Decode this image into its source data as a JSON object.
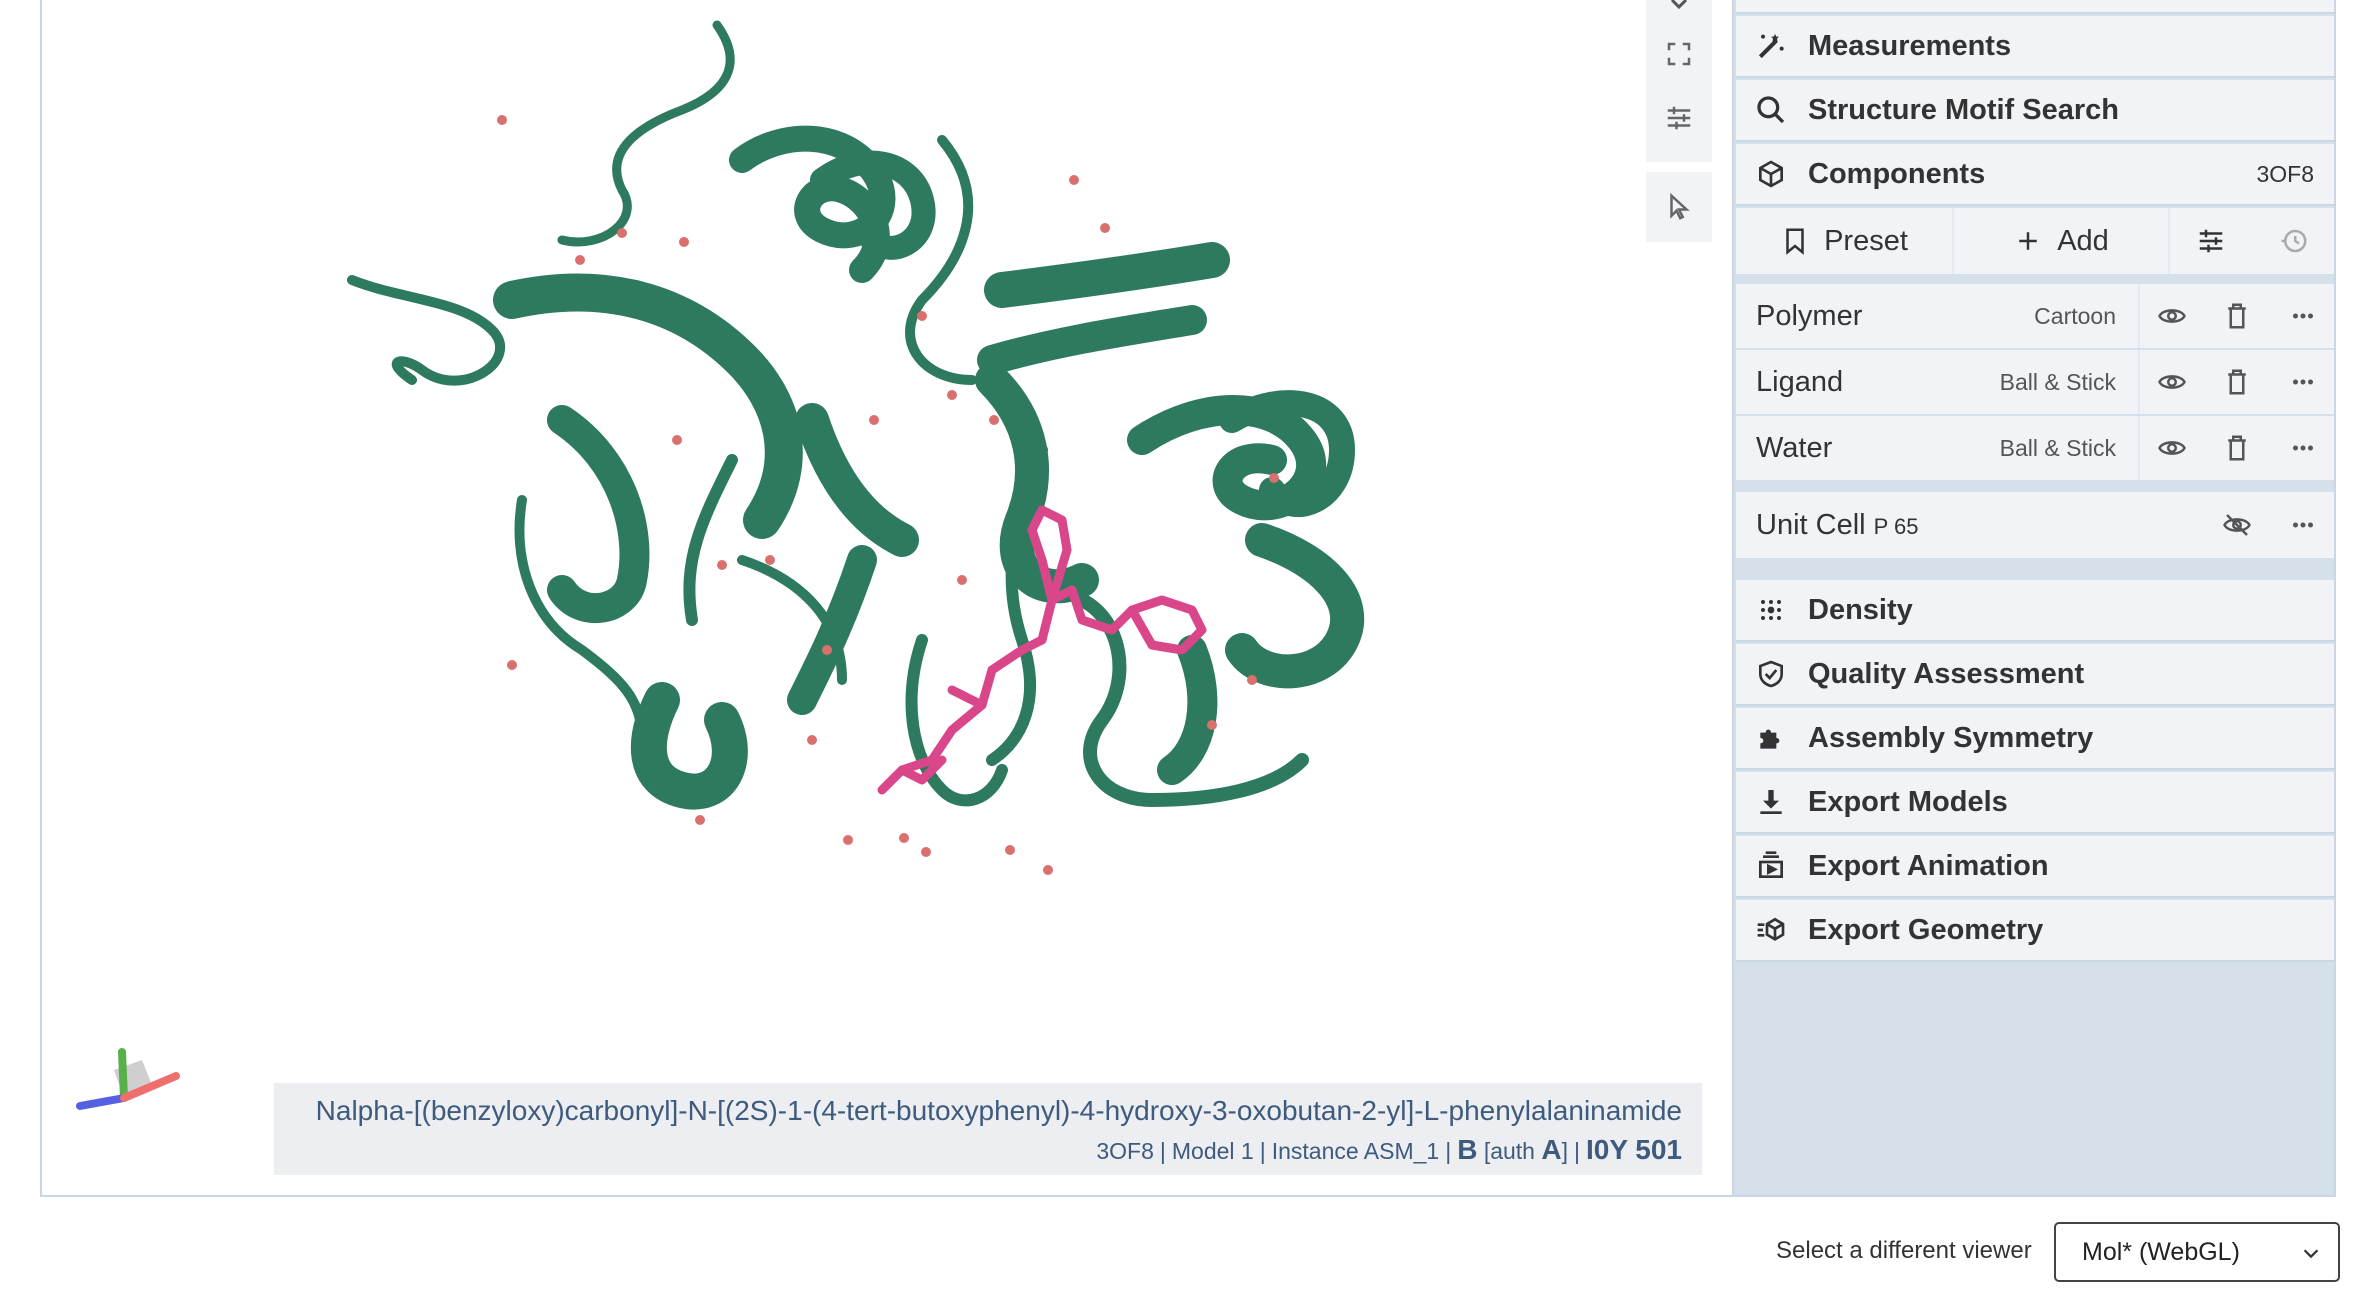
{
  "viewport_controls": [
    "expand-icon",
    "settings-sliders-icon",
    "pointer-icon"
  ],
  "highlight": {
    "name": "Nalpha-[(benzyloxy)carbonyl]-N-[(2S)-1-(4-tert-butoxyphenyl)-4-hydroxy-3-oxobutan-2-yl]-L-phenylalaninamide",
    "entry": "3OF8",
    "model": "Model 1",
    "instance": "Instance ASM_1",
    "chain": "B",
    "auth_prefix": "[auth",
    "auth_chain": "A",
    "auth_suffix": "]",
    "residue": "I0Y 501"
  },
  "panel": {
    "measurements": "Measurements",
    "motif_search": "Structure Motif Search",
    "components": {
      "label": "Components",
      "entry": "3OF8"
    },
    "toolbar": {
      "preset": "Preset",
      "add": "Add"
    },
    "rows": [
      {
        "name": "Polymer",
        "repr": "Cartoon"
      },
      {
        "name": "Ligand",
        "repr": "Ball & Stick"
      },
      {
        "name": "Water",
        "repr": "Ball & Stick"
      }
    ],
    "unit_cell": {
      "name": "Unit Cell",
      "group": "P 65"
    },
    "density": "Density",
    "quality": "Quality Assessment",
    "assembly": "Assembly Symmetry",
    "export_models": "Export Models",
    "export_animation": "Export Animation",
    "export_geometry": "Export Geometry"
  },
  "viewer_select": {
    "label": "Select a different viewer",
    "value": "Mol* (WebGL)"
  },
  "colors": {
    "protein": "#2e7a5e",
    "ligand": "#d9468a",
    "water": "#d9706e",
    "panel_bg": "#d5e0ea",
    "header_bg": "#f1f3f6"
  }
}
